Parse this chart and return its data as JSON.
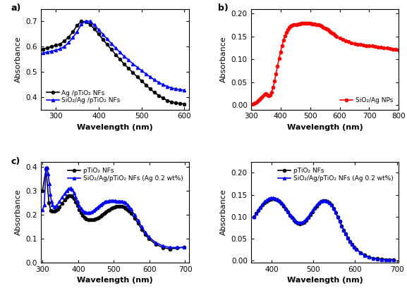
{
  "panel_a": {
    "xlabel": "Wavelength (nm)",
    "ylabel": "Absorbance",
    "xlim": [
      265,
      610
    ],
    "ylim": [
      0.35,
      0.75
    ],
    "yticks": [
      0.4,
      0.5,
      0.6,
      0.7
    ],
    "xticks": [
      300,
      400,
      500,
      600
    ],
    "line1_label": "Ag /pTiO₂ NFs",
    "line1_color": "black",
    "line1_x": [
      270,
      280,
      290,
      300,
      310,
      320,
      330,
      340,
      350,
      360,
      370,
      380,
      390,
      400,
      410,
      420,
      430,
      440,
      450,
      460,
      470,
      480,
      490,
      500,
      510,
      520,
      530,
      540,
      550,
      560,
      570,
      580,
      590,
      600
    ],
    "line1_y": [
      0.59,
      0.595,
      0.6,
      0.605,
      0.61,
      0.622,
      0.638,
      0.658,
      0.685,
      0.7,
      0.698,
      0.688,
      0.67,
      0.65,
      0.628,
      0.608,
      0.588,
      0.568,
      0.549,
      0.53,
      0.513,
      0.496,
      0.48,
      0.464,
      0.448,
      0.432,
      0.418,
      0.406,
      0.395,
      0.386,
      0.38,
      0.376,
      0.374,
      0.372
    ],
    "line2_label": "SiO₂/Ag /pTiO₂ NFs",
    "line2_color": "blue",
    "line2_x": [
      270,
      280,
      290,
      300,
      310,
      320,
      330,
      340,
      350,
      360,
      370,
      380,
      390,
      400,
      410,
      420,
      430,
      440,
      450,
      460,
      470,
      480,
      490,
      500,
      510,
      520,
      530,
      540,
      550,
      560,
      570,
      580,
      590,
      600
    ],
    "line2_y": [
      0.575,
      0.578,
      0.582,
      0.586,
      0.591,
      0.6,
      0.616,
      0.636,
      0.66,
      0.69,
      0.702,
      0.7,
      0.686,
      0.668,
      0.649,
      0.63,
      0.612,
      0.594,
      0.577,
      0.561,
      0.546,
      0.532,
      0.518,
      0.505,
      0.492,
      0.48,
      0.468,
      0.458,
      0.449,
      0.442,
      0.436,
      0.432,
      0.429,
      0.427
    ]
  },
  "panel_b": {
    "xlabel": "Wavelength (nm)",
    "ylabel": "Absorbance",
    "xlim": [
      300,
      800
    ],
    "ylim": [
      -0.01,
      0.21
    ],
    "yticks": [
      0.0,
      0.05,
      0.1,
      0.15,
      0.2
    ],
    "xticks": [
      300,
      400,
      500,
      600,
      700,
      800
    ],
    "line1_label": "SiO₂/Ag NPs",
    "line1_color": "red",
    "line1_x": [
      305,
      310,
      315,
      320,
      325,
      330,
      335,
      340,
      345,
      350,
      355,
      360,
      365,
      370,
      375,
      380,
      385,
      390,
      395,
      400,
      405,
      410,
      415,
      420,
      425,
      430,
      435,
      440,
      445,
      450,
      455,
      460,
      465,
      470,
      475,
      480,
      485,
      490,
      495,
      500,
      505,
      510,
      515,
      520,
      525,
      530,
      535,
      540,
      545,
      550,
      555,
      560,
      565,
      570,
      575,
      580,
      585,
      590,
      600,
      610,
      620,
      630,
      640,
      650,
      660,
      670,
      680,
      690,
      700,
      710,
      720,
      730,
      740,
      750,
      760,
      770,
      780,
      790,
      800
    ],
    "line1_y": [
      0.002,
      0.003,
      0.005,
      0.007,
      0.01,
      0.012,
      0.015,
      0.019,
      0.023,
      0.025,
      0.022,
      0.02,
      0.022,
      0.028,
      0.038,
      0.052,
      0.068,
      0.085,
      0.101,
      0.116,
      0.129,
      0.141,
      0.151,
      0.159,
      0.165,
      0.169,
      0.172,
      0.174,
      0.175,
      0.176,
      0.176,
      0.177,
      0.177,
      0.178,
      0.178,
      0.178,
      0.178,
      0.178,
      0.178,
      0.178,
      0.177,
      0.177,
      0.177,
      0.176,
      0.176,
      0.175,
      0.174,
      0.172,
      0.17,
      0.168,
      0.166,
      0.164,
      0.161,
      0.159,
      0.157,
      0.155,
      0.153,
      0.15,
      0.146,
      0.143,
      0.14,
      0.138,
      0.136,
      0.134,
      0.133,
      0.132,
      0.131,
      0.13,
      0.13,
      0.129,
      0.128,
      0.127,
      0.126,
      0.125,
      0.124,
      0.123,
      0.122,
      0.121,
      0.12
    ]
  },
  "panel_c": {
    "xlabel": "Wavelength (nm)",
    "ylabel": "Absorbance",
    "xlim": [
      295,
      710
    ],
    "ylim": [
      0.0,
      0.42
    ],
    "yticks": [
      0.0,
      0.1,
      0.2,
      0.3,
      0.4
    ],
    "xticks": [
      300,
      400,
      500,
      600,
      700
    ],
    "line1_label": "pTiO₂ NFs",
    "line1_color": "black",
    "line1_x": [
      300,
      310,
      318,
      323,
      328,
      333,
      338,
      343,
      348,
      355,
      362,
      368,
      373,
      378,
      383,
      388,
      393,
      398,
      403,
      408,
      413,
      418,
      423,
      428,
      433,
      438,
      443,
      448,
      453,
      458,
      463,
      468,
      473,
      478,
      483,
      488,
      493,
      498,
      503,
      508,
      513,
      518,
      523,
      528,
      533,
      538,
      543,
      548,
      558,
      568,
      578,
      588,
      598,
      618,
      638,
      658,
      678,
      698
    ],
    "line1_y": [
      0.3,
      0.39,
      0.25,
      0.218,
      0.213,
      0.213,
      0.217,
      0.223,
      0.232,
      0.247,
      0.262,
      0.272,
      0.278,
      0.28,
      0.276,
      0.267,
      0.253,
      0.237,
      0.22,
      0.207,
      0.196,
      0.188,
      0.183,
      0.18,
      0.179,
      0.179,
      0.18,
      0.182,
      0.185,
      0.189,
      0.194,
      0.199,
      0.205,
      0.211,
      0.216,
      0.221,
      0.225,
      0.229,
      0.232,
      0.234,
      0.235,
      0.235,
      0.234,
      0.231,
      0.227,
      0.221,
      0.214,
      0.205,
      0.186,
      0.163,
      0.139,
      0.117,
      0.099,
      0.076,
      0.062,
      0.057,
      0.06,
      0.065
    ],
    "line2_label": "SiO₂/Ag/pTiO₂ NFs (Ag 0.2 wt%)",
    "line2_color": "blue",
    "line2_x": [
      300,
      305,
      310,
      313,
      316,
      319,
      322,
      325,
      328,
      333,
      340,
      348,
      355,
      362,
      368,
      373,
      378,
      383,
      388,
      393,
      398,
      403,
      408,
      413,
      418,
      423,
      428,
      433,
      438,
      443,
      448,
      453,
      458,
      463,
      468,
      473,
      478,
      483,
      488,
      493,
      498,
      503,
      508,
      513,
      518,
      523,
      528,
      533,
      538,
      543,
      548,
      558,
      568,
      578,
      588,
      598,
      618,
      638,
      658,
      678,
      698
    ],
    "line2_y": [
      0.22,
      0.24,
      0.395,
      0.395,
      0.37,
      0.33,
      0.285,
      0.255,
      0.24,
      0.232,
      0.238,
      0.256,
      0.272,
      0.288,
      0.3,
      0.308,
      0.31,
      0.305,
      0.291,
      0.273,
      0.255,
      0.238,
      0.226,
      0.217,
      0.211,
      0.208,
      0.207,
      0.208,
      0.212,
      0.217,
      0.223,
      0.23,
      0.236,
      0.242,
      0.247,
      0.251,
      0.254,
      0.256,
      0.257,
      0.257,
      0.257,
      0.257,
      0.256,
      0.256,
      0.256,
      0.255,
      0.252,
      0.248,
      0.241,
      0.232,
      0.222,
      0.2,
      0.175,
      0.15,
      0.127,
      0.107,
      0.083,
      0.069,
      0.063,
      0.063,
      0.063
    ]
  },
  "panel_d": {
    "xlabel": "Wavelength (nm)",
    "ylabel": "Absorbance",
    "xlim": [
      350,
      705
    ],
    "ylim": [
      -0.005,
      0.225
    ],
    "yticks": [
      0.0,
      0.05,
      0.1,
      0.15,
      0.2
    ],
    "xticks": [
      400,
      500,
      600,
      700
    ],
    "line1_label": "pTiO₂ NFs",
    "line1_color": "black",
    "line1_x": [
      358,
      363,
      368,
      373,
      378,
      383,
      388,
      393,
      398,
      403,
      408,
      413,
      418,
      423,
      428,
      433,
      438,
      443,
      448,
      453,
      458,
      463,
      468,
      473,
      478,
      483,
      488,
      493,
      498,
      503,
      508,
      513,
      518,
      523,
      528,
      533,
      538,
      543,
      548,
      553,
      558,
      563,
      568,
      573,
      578,
      583,
      588,
      593,
      598,
      603,
      613,
      623,
      633,
      643,
      653,
      663,
      673,
      683,
      693
    ],
    "line1_y": [
      0.1,
      0.107,
      0.114,
      0.12,
      0.126,
      0.131,
      0.135,
      0.138,
      0.14,
      0.141,
      0.14,
      0.138,
      0.135,
      0.13,
      0.124,
      0.117,
      0.11,
      0.103,
      0.097,
      0.092,
      0.088,
      0.085,
      0.084,
      0.085,
      0.087,
      0.091,
      0.097,
      0.104,
      0.111,
      0.118,
      0.124,
      0.13,
      0.134,
      0.136,
      0.136,
      0.135,
      0.131,
      0.126,
      0.118,
      0.109,
      0.099,
      0.089,
      0.079,
      0.069,
      0.06,
      0.051,
      0.043,
      0.037,
      0.031,
      0.026,
      0.018,
      0.012,
      0.008,
      0.005,
      0.004,
      0.003,
      0.002,
      0.002,
      0.002
    ],
    "line2_label": "SiO₂/Ag/pTiO₂ NFs (Ag 0.2 wt%)",
    "line2_color": "blue",
    "line2_x": [
      358,
      363,
      368,
      373,
      378,
      383,
      388,
      393,
      398,
      403,
      408,
      413,
      418,
      423,
      428,
      433,
      438,
      443,
      448,
      453,
      458,
      463,
      468,
      473,
      478,
      483,
      488,
      493,
      498,
      503,
      508,
      513,
      518,
      523,
      528,
      533,
      538,
      543,
      548,
      553,
      558,
      563,
      568,
      573,
      578,
      583,
      588,
      593,
      598,
      603,
      613,
      623,
      633,
      643,
      653,
      663,
      673,
      683,
      693
    ],
    "line2_y": [
      0.1,
      0.107,
      0.115,
      0.122,
      0.128,
      0.134,
      0.138,
      0.141,
      0.143,
      0.143,
      0.142,
      0.14,
      0.137,
      0.132,
      0.126,
      0.119,
      0.112,
      0.105,
      0.099,
      0.094,
      0.09,
      0.087,
      0.086,
      0.087,
      0.09,
      0.094,
      0.1,
      0.107,
      0.114,
      0.121,
      0.127,
      0.132,
      0.135,
      0.137,
      0.137,
      0.135,
      0.132,
      0.126,
      0.119,
      0.11,
      0.1,
      0.089,
      0.079,
      0.069,
      0.06,
      0.051,
      0.043,
      0.036,
      0.03,
      0.025,
      0.017,
      0.011,
      0.007,
      0.005,
      0.003,
      0.002,
      0.002,
      0.001,
      0.001
    ]
  },
  "marker_size": 3,
  "line_width": 1.2,
  "font_size_label": 8,
  "font_size_tick": 7.5,
  "font_size_legend": 6.5,
  "font_size_panel": 9
}
